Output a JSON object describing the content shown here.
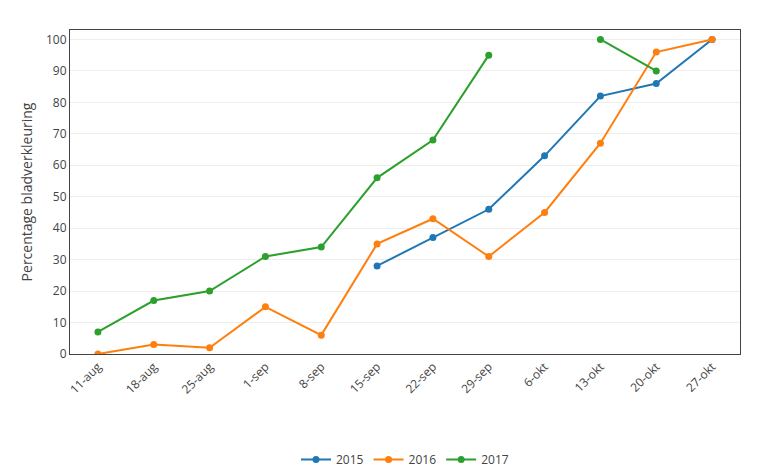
{
  "chart_data": {
    "type": "line",
    "categories": [
      "11-aug",
      "18-aug",
      "25-aug",
      "1-sep",
      "8-sep",
      "15-sep",
      "22-sep",
      "29-sep",
      "6-okt",
      "13-okt",
      "20-okt",
      "27-okt"
    ],
    "series": [
      {
        "name": "2015",
        "values": [
          null,
          null,
          null,
          null,
          null,
          28,
          37,
          46,
          63,
          82,
          86,
          100
        ]
      },
      {
        "name": "2016",
        "values": [
          0,
          3,
          2,
          15,
          6,
          35,
          43,
          31,
          45,
          67,
          96,
          100
        ]
      },
      {
        "name": "2017",
        "values": [
          7,
          17,
          20,
          31,
          34,
          56,
          68,
          95,
          null,
          100,
          90,
          null
        ]
      }
    ],
    "y_label": "Percentage bladverkleuring",
    "ylim": [
      0,
      103
    ],
    "yticks": [
      0,
      10,
      20,
      30,
      40,
      50,
      60,
      70,
      80,
      90,
      100
    ],
    "grid": true,
    "legend": "bottom",
    "marker": "circle",
    "line_style": "solid"
  }
}
